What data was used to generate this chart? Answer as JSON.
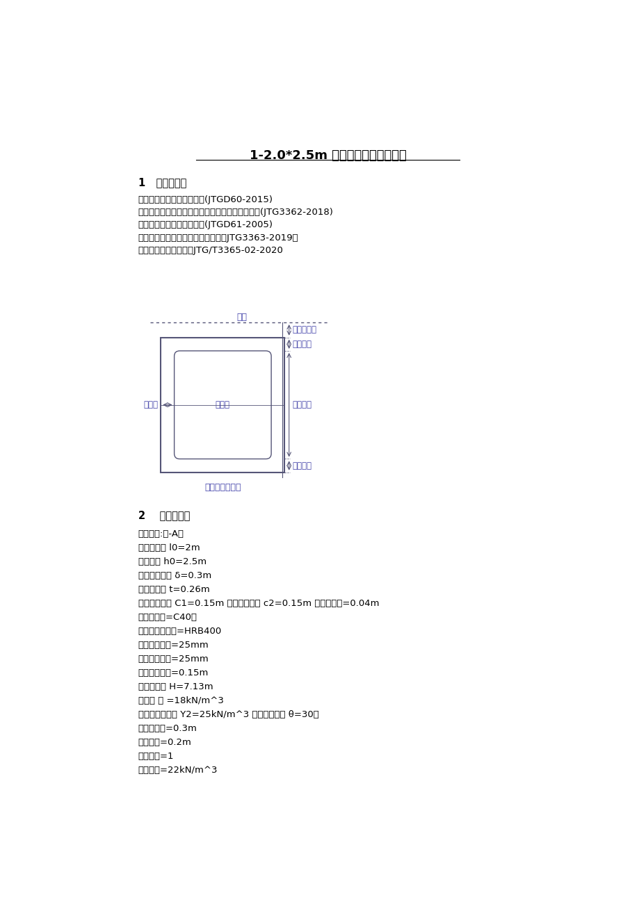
{
  "title": "1-2.0*2.5m 钢筋混凝土箱涵计算书",
  "section1_header": "1   设计依据：",
  "references": [
    "《公路桥涵设计通用规范》(JTGD60-2015)",
    "《公路钢筋混凝土及预应力混凝土桥涵设计规范》(JTG3362-2018)",
    "《公路埋工桥涵设计规范》(JTGD61-2005)",
    "《公路桥涵地基与基础设计规范》（JTG3363-2019）",
    "《公路涵洞设计细则》JTG/T3365-02-2020"
  ],
  "diagram_labels": {
    "road_surface": "路面",
    "fill_height": "涵顶填土高",
    "top_slab_thickness": "水平板厚",
    "clear_span": "净跨径",
    "side_wall_thickness": "侧板厚",
    "culvert_clear_height": "涵洞净高",
    "bottom_slab_thickness": "水平板厚",
    "diagram_caption": "箱涵截面示意图"
  },
  "section2_header": "2    设计资料：",
  "design_data": [
    "设计荷载:城-A级",
    "涵洞净利径 l0=2m",
    "涵洞净高 h0=2.5m",
    "涵洞水平板厚 δ=0.3m",
    "涵洞侧板厚 t=0.26m",
    "涵洞倒角高度 C1=0.15m 涵洞倒角宽度 c2=0.15m 保护层厚度=0.04m",
    "涵身碎标号=C40碎",
    "主受力钢筋级别=HRB400",
    "顶板钢筋直径=25mm",
    "侧板钢筋直径=25mm",
    "顶板钢筋间距=0.15m",
    "涵顶填土高 H=7.13m",
    "土容重 了 =18kN/m^3",
    "钢筋混凝土容重 Y2=25kN/m^3 土的内摩擦角 θ=30度",
    "基础搭边宽=0.3m",
    "基础厚度=0.2m",
    "基础级数=1",
    "基础容重=22kN/m^3"
  ],
  "text_color": "#000000",
  "blue_color": "#4444aa",
  "bg_color": "#ffffff",
  "diagram_line_color": "#555577",
  "title_fontsize": 13,
  "body_fontsize": 9.5,
  "header_fontsize": 10.5
}
